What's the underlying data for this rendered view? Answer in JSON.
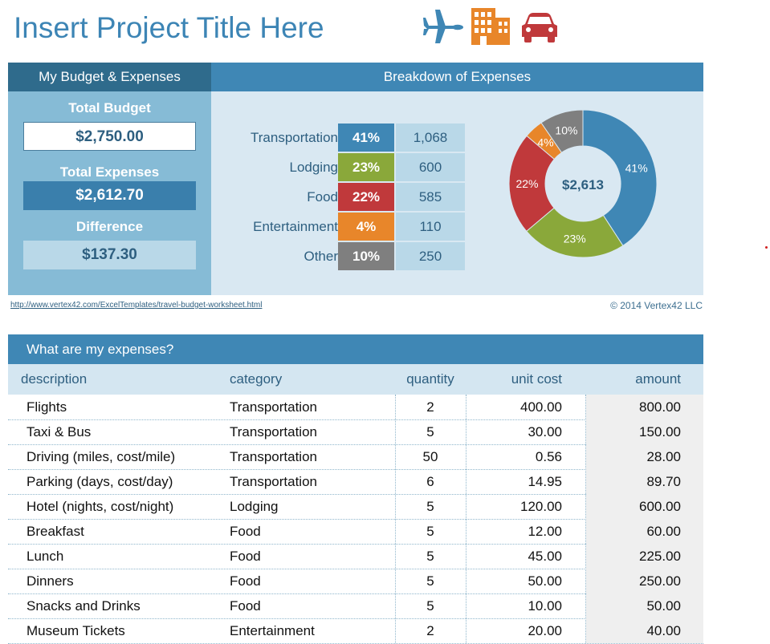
{
  "title": "Insert Project Title Here",
  "icons": [
    "airplane-icon",
    "building-icon",
    "car-icon"
  ],
  "colors": {
    "transportation": "#3f87b5",
    "lodging": "#8aa83a",
    "food": "#c0393b",
    "entertainment": "#e8862a",
    "other": "#7f7f7f"
  },
  "summary": {
    "left_header": "My Budget & Expenses",
    "right_header": "Breakdown of Expenses",
    "total_budget_label": "Total Budget",
    "total_budget_value": "$2,750.00",
    "total_expenses_label": "Total Expenses",
    "total_expenses_value": "$2,612.70",
    "difference_label": "Difference",
    "difference_value": "$137.30"
  },
  "breakdown": [
    {
      "category": "Transportation",
      "percent": "41%",
      "amount": "1,068"
    },
    {
      "category": "Lodging",
      "percent": "23%",
      "amount": "600"
    },
    {
      "category": "Food",
      "percent": "22%",
      "amount": "585"
    },
    {
      "category": "Entertainment",
      "percent": "4%",
      "amount": "110"
    },
    {
      "category": "Other",
      "percent": "10%",
      "amount": "250"
    }
  ],
  "chart_data": {
    "type": "pie",
    "center_label": "$2,613",
    "categories": [
      "Transportation",
      "Lodging",
      "Food",
      "Entertainment",
      "Other"
    ],
    "values": [
      1068,
      600,
      585,
      110,
      250
    ],
    "labels": [
      "41%",
      "23%",
      "22%",
      "4%",
      "10%"
    ]
  },
  "footer": {
    "link": "http://www.vertex42.com/ExcelTemplates/travel-budget-worksheet.html",
    "copyright": "© 2014 Vertex42 LLC"
  },
  "expenses": {
    "header": "What are my expenses?",
    "columns": [
      "description",
      "category",
      "quantity",
      "unit cost",
      "amount"
    ],
    "rows": [
      [
        "Flights",
        "Transportation",
        "2",
        "400.00",
        "800.00"
      ],
      [
        "Taxi & Bus",
        "Transportation",
        "5",
        "30.00",
        "150.00"
      ],
      [
        "Driving (miles, cost/mile)",
        "Transportation",
        "50",
        "0.56",
        "28.00"
      ],
      [
        "Parking (days, cost/day)",
        "Transportation",
        "6",
        "14.95",
        "89.70"
      ],
      [
        "Hotel (nights, cost/night)",
        "Lodging",
        "5",
        "120.00",
        "600.00"
      ],
      [
        "Breakfast",
        "Food",
        "5",
        "12.00",
        "60.00"
      ],
      [
        "Lunch",
        "Food",
        "5",
        "45.00",
        "225.00"
      ],
      [
        "Dinners",
        "Food",
        "5",
        "50.00",
        "250.00"
      ],
      [
        "Snacks and Drinks",
        "Food",
        "5",
        "10.00",
        "50.00"
      ],
      [
        "Museum Tickets",
        "Entertainment",
        "2",
        "20.00",
        "40.00"
      ]
    ]
  }
}
